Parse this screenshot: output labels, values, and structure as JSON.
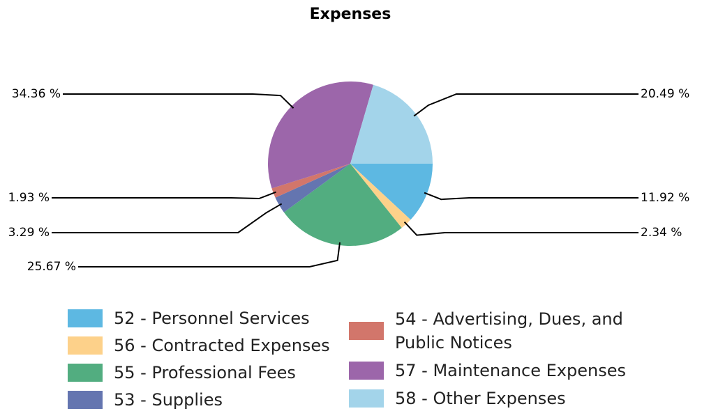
{
  "chart_data": {
    "type": "pie",
    "title": "Expenses",
    "categories": [
      "52 - Personnel Services",
      "56 - Contracted Expenses",
      "55 - Professional Fees",
      "53 - Supplies",
      "54 - Advertising, Dues, and Public Notices",
      "57 - Maintenance Expenses",
      "58 - Other Expenses"
    ],
    "values": [
      11.92,
      2.34,
      25.67,
      3.29,
      1.93,
      34.36,
      20.49
    ],
    "value_labels": [
      "11.92 %",
      "2.34 %",
      "25.67 %",
      "3.29 %",
      "1.93 %",
      "34.36 %",
      "20.49 %"
    ],
    "colors": [
      "#5db8e2",
      "#fdd18a",
      "#52ad80",
      "#6475b0",
      "#d2766b",
      "#9c66aa",
      "#a3d4ea"
    ],
    "legend": "bottom"
  }
}
